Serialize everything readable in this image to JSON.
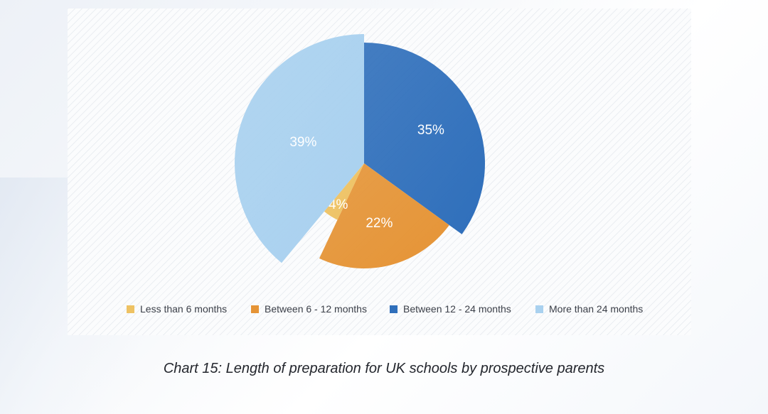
{
  "chart_data": {
    "type": "pie",
    "title": "Chart 15: Length of preparation for UK schools by prospective parents",
    "slices": [
      {
        "label": "Between 12 - 24 months",
        "value": 35,
        "value_label": "35%",
        "color": "#2f6fbb"
      },
      {
        "label": "Between 6 - 12 months",
        "value": 22,
        "value_label": "22%",
        "color": "#e59436"
      },
      {
        "label": "Less than 6 months",
        "value": 4,
        "value_label": "4%",
        "color": "#eec263"
      },
      {
        "label": "More than 24 months",
        "value": 39,
        "value_label": "39%",
        "color": "#a9d1ef"
      }
    ],
    "legend_order": [
      "Less than 6 months",
      "Between 6 - 12 months",
      "Between 12 - 24 months",
      "More than 24 months"
    ],
    "legend_placement": "bottom"
  }
}
